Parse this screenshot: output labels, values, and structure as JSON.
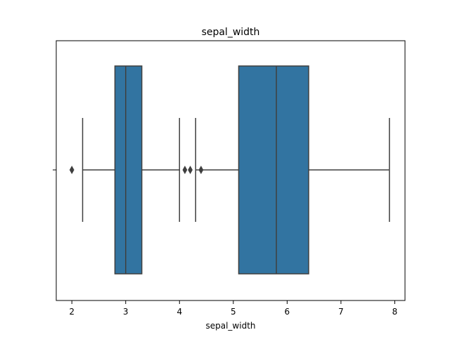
{
  "chart_data": {
    "type": "boxplot",
    "title": "sepal_width",
    "xlabel": "sepal_width",
    "ylabel": "",
    "xlim": [
      1.71,
      8.19
    ],
    "xticks": [
      2,
      3,
      4,
      5,
      6,
      7,
      8
    ],
    "grid": false,
    "legend": "none",
    "boxes": [
      {
        "q1": 2.8,
        "median": 3.0,
        "q3": 3.3,
        "whisker_low": 2.2,
        "whisker_high": 4.0,
        "outliers": [
          2.0,
          4.1,
          4.2,
          4.4
        ]
      },
      {
        "q1": 5.1,
        "median": 5.8,
        "q3": 6.4,
        "whisker_low": 4.3,
        "whisker_high": 7.9,
        "outliers": []
      }
    ],
    "colors": {
      "box_fill": "#3274a1",
      "line": "#3f3f3f",
      "axis": "#000000"
    }
  }
}
